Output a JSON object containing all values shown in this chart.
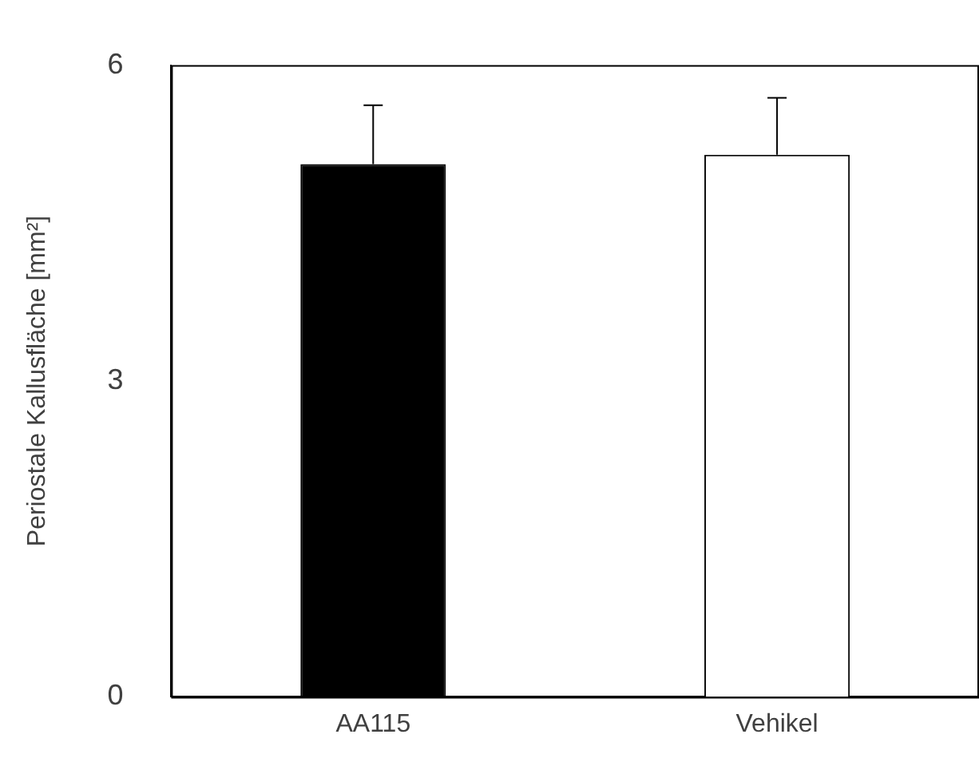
{
  "chart_data": {
    "type": "bar",
    "ylabel": "Periostale Kallusfläche [mm²]",
    "categories": [
      "AA115",
      "Vehikel"
    ],
    "values": [
      5.06,
      5.15
    ],
    "colors": [
      "#000000",
      "#ffffff"
    ],
    "errors": [
      [
        5.06,
        5.62
      ],
      [
        5.15,
        5.69
      ]
    ],
    "ylim": [
      0,
      6
    ],
    "yticks": [
      0,
      3,
      6
    ],
    "grid": false,
    "legend": false
  }
}
